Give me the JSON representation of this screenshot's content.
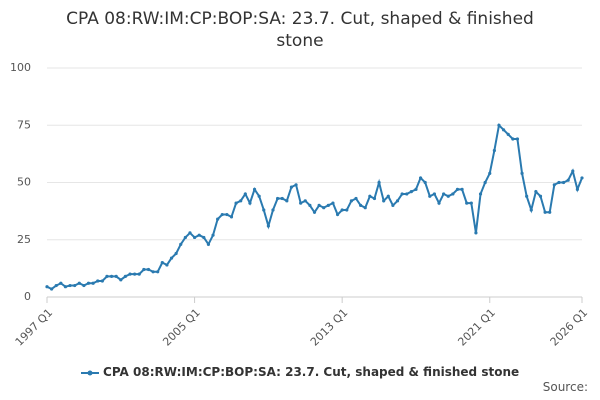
{
  "chart_data": {
    "type": "line",
    "title": "CPA 08:RW:IM:CP:BOP:SA: 23.7. Cut, shaped & finished stone",
    "source": "Source:",
    "categories": [
      "1997 Q1",
      null,
      null,
      null,
      null,
      null,
      null,
      null,
      null,
      null,
      null,
      null,
      null,
      null,
      null,
      null,
      null,
      null,
      null,
      null,
      null,
      null,
      null,
      null,
      null,
      null,
      null,
      null,
      null,
      null,
      null,
      null,
      "2005 Q1",
      null,
      null,
      null,
      null,
      null,
      null,
      null,
      null,
      null,
      null,
      null,
      null,
      null,
      null,
      null,
      null,
      null,
      null,
      null,
      null,
      null,
      null,
      null,
      null,
      null,
      null,
      null,
      null,
      null,
      null,
      null,
      "2013 Q1",
      null,
      null,
      null,
      null,
      null,
      null,
      null,
      null,
      null,
      null,
      null,
      null,
      null,
      null,
      null,
      null,
      null,
      null,
      null,
      null,
      null,
      null,
      null,
      null,
      null,
      null,
      null,
      null,
      null,
      null,
      null,
      "2021 Q1",
      null,
      null,
      null,
      null,
      null,
      null,
      null,
      null,
      null,
      null,
      null,
      null,
      null,
      null,
      null,
      null,
      null,
      null,
      null,
      "2026 Q1"
    ],
    "series": [
      {
        "name": "CPA 08:RW:IM:CP:BOP:SA: 23.7. Cut, shaped & finished stone",
        "color": "#2a7ab0",
        "values": [
          4.5,
          3.5,
          5,
          6,
          4.5,
          5,
          5,
          6,
          5,
          6,
          6,
          7,
          7,
          9,
          9,
          9,
          7.5,
          9,
          10,
          10,
          10,
          12,
          12,
          11,
          11,
          15,
          14,
          17,
          19,
          23,
          26,
          28,
          26,
          27,
          26,
          23,
          27,
          34,
          36,
          36,
          35,
          41,
          42,
          45,
          41,
          47,
          44,
          38,
          31,
          38,
          43,
          43,
          42,
          48,
          49,
          41,
          42,
          40,
          37,
          40,
          39,
          40,
          41,
          36,
          38,
          38,
          42,
          43,
          40,
          39,
          44,
          43,
          50,
          42,
          44,
          40,
          42,
          45,
          45,
          46,
          47,
          52,
          50,
          44,
          45,
          41,
          45,
          44,
          45,
          47,
          47,
          41,
          41,
          28,
          45,
          50,
          54,
          64,
          75,
          73,
          71,
          69,
          69,
          54,
          44,
          38,
          46,
          44,
          37,
          37,
          49,
          50,
          50,
          51,
          55,
          47,
          52
        ]
      }
    ],
    "ylim": [
      0,
      100
    ],
    "yticks": [
      0,
      25,
      50,
      75,
      100
    ],
    "grid": true
  }
}
